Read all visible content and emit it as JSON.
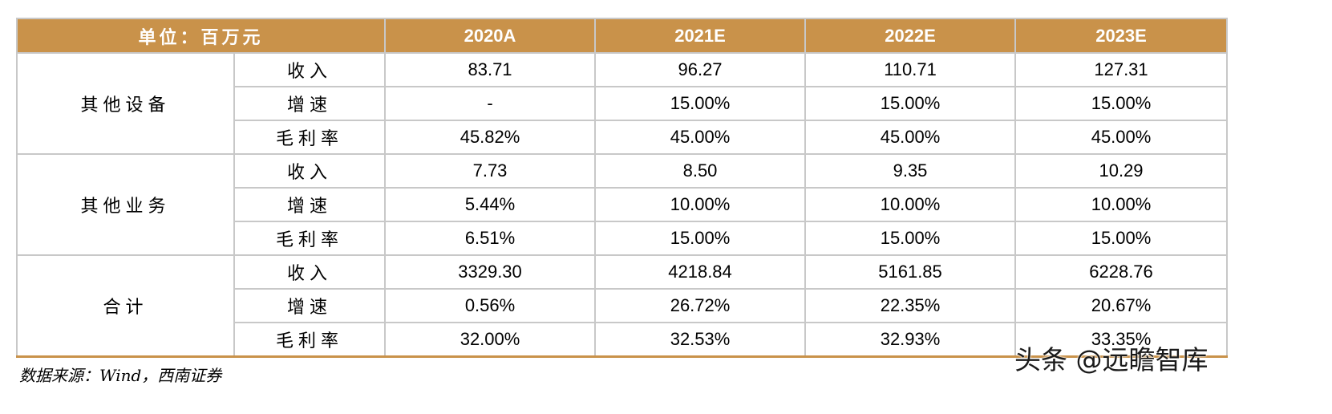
{
  "table": {
    "unit_header": "单位：百万元",
    "years": [
      "2020A",
      "2021E",
      "2022E",
      "2023E"
    ],
    "groups": [
      {
        "name": "其他设备",
        "rows": [
          {
            "metric": "收入",
            "values": [
              "83.71",
              "96.27",
              "110.71",
              "127.31"
            ]
          },
          {
            "metric": "增速",
            "values": [
              "-",
              "15.00%",
              "15.00%",
              "15.00%"
            ]
          },
          {
            "metric": "毛利率",
            "values": [
              "45.82%",
              "45.00%",
              "45.00%",
              "45.00%"
            ]
          }
        ]
      },
      {
        "name": "其他业务",
        "rows": [
          {
            "metric": "收入",
            "values": [
              "7.73",
              "8.50",
              "9.35",
              "10.29"
            ]
          },
          {
            "metric": "增速",
            "values": [
              "5.44%",
              "10.00%",
              "10.00%",
              "10.00%"
            ]
          },
          {
            "metric": "毛利率",
            "values": [
              "6.51%",
              "15.00%",
              "15.00%",
              "15.00%"
            ]
          }
        ]
      },
      {
        "name": "合计",
        "rows": [
          {
            "metric": "收入",
            "values": [
              "3329.30",
              "4218.84",
              "5161.85",
              "6228.76"
            ]
          },
          {
            "metric": "增速",
            "values": [
              "0.56%",
              "26.72%",
              "22.35%",
              "20.67%"
            ]
          },
          {
            "metric": "毛利率",
            "values": [
              "32.00%",
              "32.53%",
              "32.93%",
              "33.35%"
            ]
          }
        ]
      }
    ]
  },
  "source_note": "数据来源：Wind，西南证券",
  "watermark": "头条 @远瞻智库",
  "colors": {
    "header_bg": "#c9924a",
    "header_text": "#ffffff",
    "border": "#c8c8c8"
  }
}
